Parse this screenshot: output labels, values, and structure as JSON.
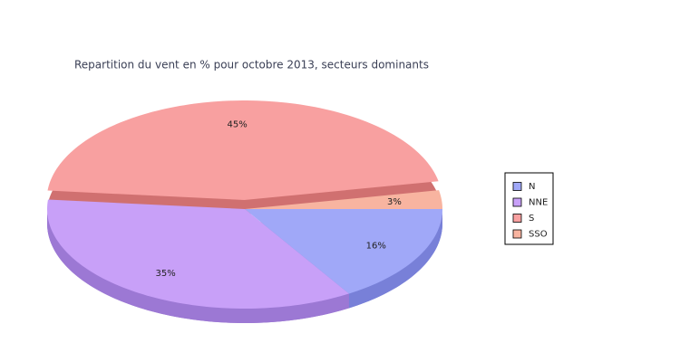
{
  "chart_data": {
    "type": "pie",
    "title": "Repartition du vent en % pour octobre 2013, secteurs dominants",
    "categories": [
      "N",
      "NNE",
      "S",
      "SSO"
    ],
    "values": [
      16,
      35,
      45,
      3
    ],
    "value_labels": [
      "16%",
      "35%",
      "45%",
      "3%"
    ],
    "colors": [
      "#a0a8f8",
      "#c8a0f8",
      "#f8a0a0",
      "#f8b4a0"
    ],
    "side_colors": [
      "#7880d8",
      "#9c78d4",
      "#d07070",
      "#d49080"
    ],
    "legend": "right"
  }
}
